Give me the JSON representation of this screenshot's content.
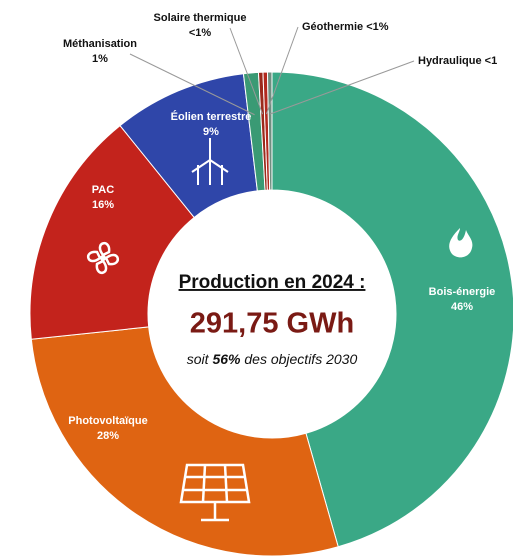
{
  "chart_data": {
    "type": "donut",
    "categories": [
      "Bois-énergie",
      "Photovoltaïque",
      "PAC",
      "Éolien terrestre",
      "Méthanisation",
      "Solaire thermique",
      "Géothermie",
      "Hydraulique"
    ],
    "values": [
      46,
      28,
      16,
      9,
      1,
      0.3,
      0.3,
      0.3
    ],
    "value_labels": [
      "46%",
      "28%",
      "16%",
      "9%",
      "1%",
      "<1%",
      "<1%",
      "<1"
    ],
    "colors": [
      "#3aa886",
      "#df6412",
      "#c3231c",
      "#2f46a9",
      "#3a9a74",
      "#9b2a1c",
      "#b22a1f",
      "#6e8f80"
    ],
    "center": {
      "heading": "Production en 2024 :",
      "total": "291,75 GWh",
      "note_start": "soit ",
      "note_share": "56%",
      "note_end": " des objectifs 2030"
    }
  }
}
